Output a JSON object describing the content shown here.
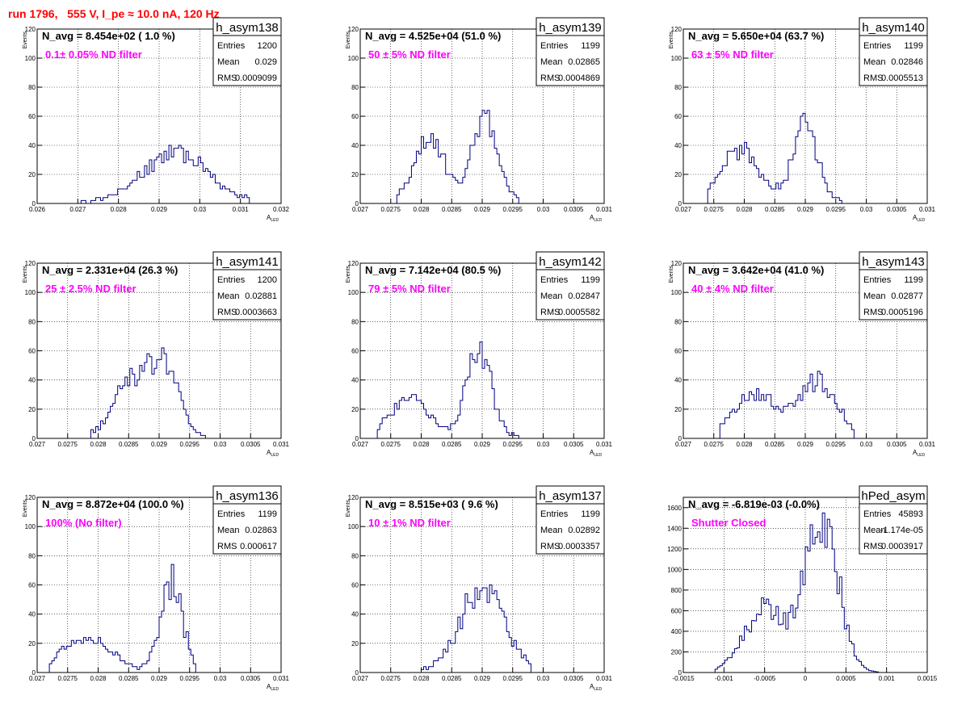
{
  "page_title": "run 1796,   555 V, I_pe ≈ 10.0 nA, 120 Hz",
  "colors": {
    "title": "#ff0000",
    "annotation": "#ff00ff",
    "histogram": "#000080",
    "grid": "#000000"
  },
  "chart_data": [
    {
      "type": "histogram",
      "name": "h_asym138",
      "info": "N_avg = 8.454e+02 ( 1.0 %)",
      "filter": "0.1± 0.05% ND filter",
      "stats": [
        [
          "Entries",
          "1200"
        ],
        [
          "Mean",
          "0.029"
        ],
        [
          "RMS",
          "0.0009099"
        ]
      ],
      "xlabel": "A_LED",
      "ylabel": "Events",
      "xlim": [
        0.026,
        0.032
      ],
      "ylim": [
        0,
        120
      ],
      "xticks": [
        0.026,
        0.027,
        0.028,
        0.029,
        0.03,
        0.031,
        0.032
      ],
      "xticklabels": [
        "0.026",
        "0.027",
        "0.028",
        "0.029",
        "0.03",
        "0.031",
        "0.032"
      ],
      "yticks": [
        0,
        20,
        40,
        60,
        80,
        100,
        120
      ],
      "peaks": [
        [
          0.0294,
          35,
          0.00075
        ]
      ],
      "range": [
        0.0262,
        0.0312
      ],
      "seed": 11
    },
    {
      "type": "histogram",
      "name": "h_asym139",
      "info": "N_avg = 4.525e+04 (51.0 %)",
      "filter": "50 ± 5% ND filter",
      "stats": [
        [
          "Entries",
          "1199"
        ],
        [
          "Mean",
          "0.02865"
        ],
        [
          "RMS",
          "0.0004869"
        ]
      ],
      "xlabel": "A_LED",
      "ylabel": "Events",
      "xlim": [
        0.027,
        0.031
      ],
      "ylim": [
        0,
        120
      ],
      "xticks": [
        0.027,
        0.0275,
        0.028,
        0.0285,
        0.029,
        0.0295,
        0.03,
        0.0305,
        0.031
      ],
      "xticklabels": [
        "0.027",
        "0.0275",
        "0.028",
        "0.0285",
        "0.029",
        "0.0295",
        "0.03",
        "0.0305",
        "0.031"
      ],
      "yticks": [
        0,
        20,
        40,
        60,
        80,
        100,
        120
      ],
      "peaks": [
        [
          0.02815,
          42,
          0.00025
        ],
        [
          0.02905,
          60,
          0.0002
        ]
      ],
      "range": [
        0.0276,
        0.0296
      ],
      "seed": 23
    },
    {
      "type": "histogram",
      "name": "h_asym140",
      "info": "N_avg = 5.650e+04 (63.7 %)",
      "filter": "63 ± 5% ND filter",
      "stats": [
        [
          "Entries",
          "1199"
        ],
        [
          "Mean",
          "0.02846"
        ],
        [
          "RMS",
          "0.0005513"
        ]
      ],
      "xlabel": "A_LED",
      "ylabel": "Events",
      "xlim": [
        0.027,
        0.031
      ],
      "ylim": [
        0,
        120
      ],
      "xticks": [
        0.027,
        0.0275,
        0.028,
        0.0285,
        0.029,
        0.0295,
        0.03,
        0.0305,
        0.031
      ],
      "xticklabels": [
        "0.027",
        "0.0275",
        "0.028",
        "0.0285",
        "0.029",
        "0.0295",
        "0.03",
        "0.0305",
        "0.031"
      ],
      "yticks": [
        0,
        20,
        40,
        60,
        80,
        100,
        120
      ],
      "peaks": [
        [
          0.02795,
          35,
          0.0003
        ],
        [
          0.029,
          55,
          0.0002
        ]
      ],
      "range": [
        0.0274,
        0.0296
      ],
      "seed": 37
    },
    {
      "type": "histogram",
      "name": "h_asym141",
      "info": "N_avg = 2.331e+04 (26.3 %)",
      "filter": "25 ± 2.5% ND filter",
      "stats": [
        [
          "Entries",
          "1200"
        ],
        [
          "Mean",
          "0.02881"
        ],
        [
          "RMS",
          "0.0003663"
        ]
      ],
      "xlabel": "A_LED",
      "ylabel": "Events",
      "xlim": [
        0.027,
        0.031
      ],
      "ylim": [
        0,
        120
      ],
      "xticks": [
        0.027,
        0.0275,
        0.028,
        0.0285,
        0.029,
        0.0295,
        0.03,
        0.0305,
        0.031
      ],
      "xticklabels": [
        "0.027",
        "0.0275",
        "0.028",
        "0.0285",
        "0.029",
        "0.0295",
        "0.03",
        "0.0305",
        "0.031"
      ],
      "yticks": [
        0,
        20,
        40,
        60,
        80,
        100,
        120
      ],
      "peaks": [
        [
          0.02855,
          40,
          0.00028
        ],
        [
          0.0291,
          47,
          0.00022
        ]
      ],
      "range": [
        0.0279,
        0.03
      ],
      "seed": 41
    },
    {
      "type": "histogram",
      "name": "h_asym142",
      "info": "N_avg = 7.142e+04 (80.5 %)",
      "filter": "79 ± 5% ND filter",
      "stats": [
        [
          "Entries",
          "1199"
        ],
        [
          "Mean",
          "0.02847"
        ],
        [
          "RMS",
          "0.0005582"
        ]
      ],
      "xlabel": "A_LED",
      "ylabel": "Events",
      "xlim": [
        0.027,
        0.031
      ],
      "ylim": [
        0,
        120
      ],
      "xticks": [
        0.027,
        0.0275,
        0.028,
        0.0285,
        0.029,
        0.0295,
        0.03,
        0.0305,
        0.031
      ],
      "xticklabels": [
        "0.027",
        "0.0275",
        "0.028",
        "0.0285",
        "0.029",
        "0.0295",
        "0.03",
        "0.0305",
        "0.031"
      ],
      "yticks": [
        0,
        20,
        40,
        60,
        80,
        100,
        120
      ],
      "peaks": [
        [
          0.0278,
          28,
          0.0003
        ],
        [
          0.02895,
          60,
          0.0002
        ]
      ],
      "range": [
        0.0273,
        0.0296
      ],
      "seed": 53
    },
    {
      "type": "histogram",
      "name": "h_asym143",
      "info": "N_avg = 3.642e+04 (41.0 %)",
      "filter": "40 ± 4% ND filter",
      "stats": [
        [
          "Entries",
          "1199"
        ],
        [
          "Mean",
          "0.02877"
        ],
        [
          "RMS",
          "0.0005196"
        ]
      ],
      "xlabel": "A_LED",
      "ylabel": "Events",
      "xlim": [
        0.027,
        0.031
      ],
      "ylim": [
        0,
        120
      ],
      "xticks": [
        0.027,
        0.0275,
        0.028,
        0.0285,
        0.029,
        0.0295,
        0.03,
        0.0305,
        0.031
      ],
      "xticklabels": [
        "0.027",
        "0.0275",
        "0.028",
        "0.0285",
        "0.029",
        "0.0295",
        "0.03",
        "0.0305",
        "0.031"
      ],
      "yticks": [
        0,
        20,
        40,
        60,
        80,
        100,
        120
      ],
      "peaks": [
        [
          0.0282,
          28,
          0.00035
        ],
        [
          0.0292,
          38,
          0.0003
        ]
      ],
      "range": [
        0.0276,
        0.0298
      ],
      "seed": 61
    },
    {
      "type": "histogram",
      "name": "h_asym136",
      "info": "N_avg = 8.872e+04 (100.0 %)",
      "filter": "100% (No filter)",
      "stats": [
        [
          "Entries",
          "1199"
        ],
        [
          "Mean",
          "0.02863"
        ],
        [
          "RMS",
          "0.000617"
        ]
      ],
      "xlabel": "A_LED",
      "ylabel": "Events",
      "xlim": [
        0.027,
        0.031
      ],
      "ylim": [
        0,
        120
      ],
      "xticks": [
        0.027,
        0.0275,
        0.028,
        0.0285,
        0.029,
        0.0295,
        0.03,
        0.0305,
        0.031
      ],
      "xticklabels": [
        "0.027",
        "0.0275",
        "0.028",
        "0.0285",
        "0.029",
        "0.0295",
        "0.03",
        "0.0305",
        "0.031"
      ],
      "yticks": [
        0,
        20,
        40,
        60,
        80,
        100,
        120
      ],
      "peaks": [
        [
          0.0278,
          22,
          0.0004
        ],
        [
          0.0292,
          60,
          0.00018
        ]
      ],
      "range": [
        0.0272,
        0.0296
      ],
      "seed": 71
    },
    {
      "type": "histogram",
      "name": "h_asym137",
      "info": "N_avg = 8.515e+03 ( 9.6 %)",
      "filter": "10 ± 1% ND filter",
      "stats": [
        [
          "Entries",
          "1199"
        ],
        [
          "Mean",
          "0.02892"
        ],
        [
          "RMS",
          "0.0003357"
        ]
      ],
      "xlabel": "A_LED",
      "ylabel": "Events",
      "xlim": [
        0.027,
        0.031
      ],
      "ylim": [
        0,
        120
      ],
      "xticks": [
        0.027,
        0.0275,
        0.028,
        0.0285,
        0.029,
        0.0295,
        0.03,
        0.0305,
        0.031
      ],
      "xticklabels": [
        "0.027",
        "0.0275",
        "0.028",
        "0.0285",
        "0.029",
        "0.0295",
        "0.03",
        "0.0305",
        "0.031"
      ],
      "yticks": [
        0,
        20,
        40,
        60,
        80,
        100,
        120
      ],
      "peaks": [
        [
          0.029,
          58,
          0.00035
        ]
      ],
      "range": [
        0.028,
        0.0298
      ],
      "seed": 83
    },
    {
      "type": "histogram",
      "name": "hPed_asym",
      "info": "N_avg = -6.819e-03 (-0.0%)",
      "filter": "Shutter Closed",
      "stats": [
        [
          "Entries",
          "45893"
        ],
        [
          "Mean",
          "-1.174e-05"
        ],
        [
          "RMS",
          "0.0003917"
        ]
      ],
      "xlabel": "",
      "ylabel": "",
      "xlim": [
        -0.0015,
        0.0015
      ],
      "ylim": [
        0,
        1700
      ],
      "xticks": [
        -0.0015,
        -0.001,
        -0.0005,
        0,
        0.0005,
        0.001,
        0.0015
      ],
      "xticklabels": [
        "-0.0015",
        "-0.001",
        "-0.0005",
        "0",
        "0.0005",
        "0.001",
        "0.0015"
      ],
      "yticks": [
        0,
        200,
        400,
        600,
        800,
        1000,
        1200,
        1400,
        1600
      ],
      "peaks": [
        [
          -0.0005,
          620,
          0.00025
        ],
        [
          0.0002,
          1560,
          0.0002
        ]
      ],
      "range": [
        -0.0011,
        0.0009
      ],
      "seed": 97
    }
  ]
}
